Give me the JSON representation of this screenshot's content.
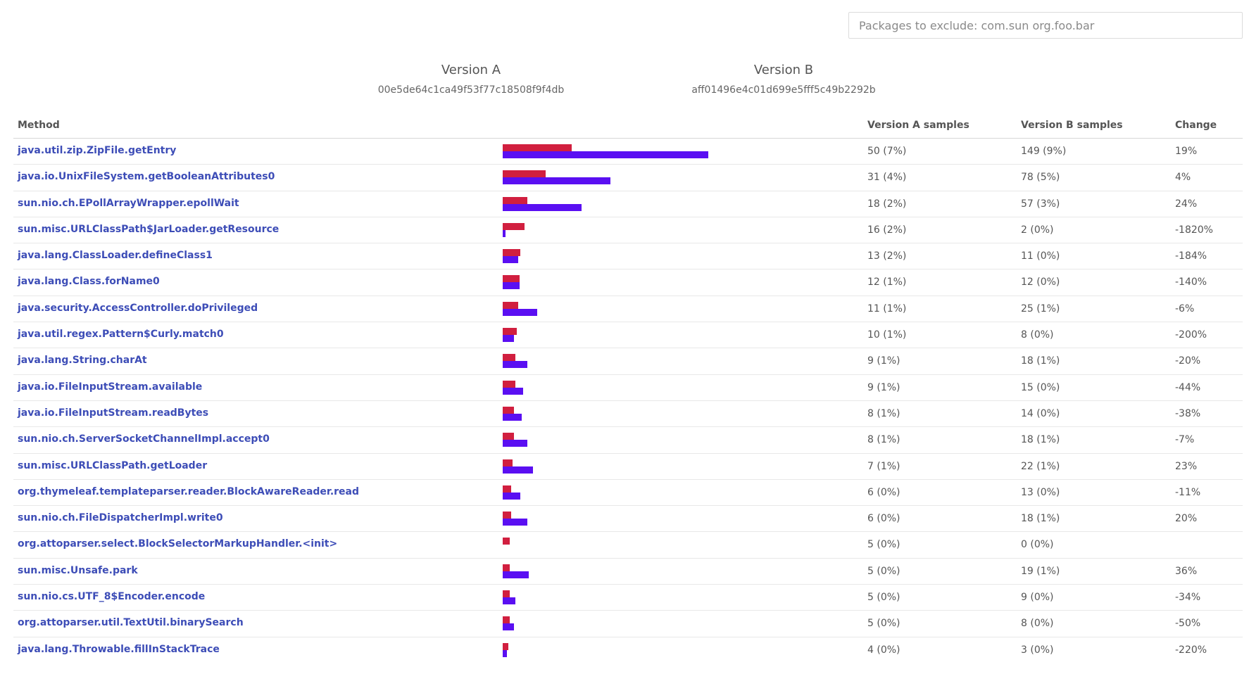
{
  "exclude": {
    "placeholder": "Packages to exclude: com.sun org.foo.bar",
    "value": ""
  },
  "versions": {
    "a": {
      "title": "Version A",
      "hash": "00e5de64c1ca49f53f77c18508f9f4db"
    },
    "b": {
      "title": "Version B",
      "hash": "aff01496e4c01d699e5fff5c49b2292b"
    }
  },
  "table": {
    "headers": {
      "method": "Method",
      "a": "Version A samples",
      "b": "Version B samples",
      "change": "Change"
    },
    "colors": {
      "a": "#d11f3f",
      "b": "#5a0ff2",
      "link": "#3d4db7"
    },
    "bar_max_samples": 149,
    "rows": [
      {
        "method": "java.util.zip.ZipFile.getEntry",
        "a_count": 50,
        "b_count": 149,
        "a": "50 (7%)",
        "b": "149 (9%)",
        "change": "19%"
      },
      {
        "method": "java.io.UnixFileSystem.getBooleanAttributes0",
        "a_count": 31,
        "b_count": 78,
        "a": "31 (4%)",
        "b": "78 (5%)",
        "change": "4%"
      },
      {
        "method": "sun.nio.ch.EPollArrayWrapper.epollWait",
        "a_count": 18,
        "b_count": 57,
        "a": "18 (2%)",
        "b": "57 (3%)",
        "change": "24%"
      },
      {
        "method": "sun.misc.URLClassPath$JarLoader.getResource",
        "a_count": 16,
        "b_count": 2,
        "a": "16 (2%)",
        "b": "2 (0%)",
        "change": "-1820%"
      },
      {
        "method": "java.lang.ClassLoader.defineClass1",
        "a_count": 13,
        "b_count": 11,
        "a": "13 (2%)",
        "b": "11 (0%)",
        "change": "-184%"
      },
      {
        "method": "java.lang.Class.forName0",
        "a_count": 12,
        "b_count": 12,
        "a": "12 (1%)",
        "b": "12 (0%)",
        "change": "-140%"
      },
      {
        "method": "java.security.AccessController.doPrivileged",
        "a_count": 11,
        "b_count": 25,
        "a": "11 (1%)",
        "b": "25 (1%)",
        "change": "-6%"
      },
      {
        "method": "java.util.regex.Pattern$Curly.match0",
        "a_count": 10,
        "b_count": 8,
        "a": "10 (1%)",
        "b": "8 (0%)",
        "change": "-200%"
      },
      {
        "method": "java.lang.String.charAt",
        "a_count": 9,
        "b_count": 18,
        "a": "9 (1%)",
        "b": "18 (1%)",
        "change": "-20%"
      },
      {
        "method": "java.io.FileInputStream.available",
        "a_count": 9,
        "b_count": 15,
        "a": "9 (1%)",
        "b": "15 (0%)",
        "change": "-44%"
      },
      {
        "method": "java.io.FileInputStream.readBytes",
        "a_count": 8,
        "b_count": 14,
        "a": "8 (1%)",
        "b": "14 (0%)",
        "change": "-38%"
      },
      {
        "method": "sun.nio.ch.ServerSocketChannelImpl.accept0",
        "a_count": 8,
        "b_count": 18,
        "a": "8 (1%)",
        "b": "18 (1%)",
        "change": "-7%"
      },
      {
        "method": "sun.misc.URLClassPath.getLoader",
        "a_count": 7,
        "b_count": 22,
        "a": "7 (1%)",
        "b": "22 (1%)",
        "change": "23%"
      },
      {
        "method": "org.thymeleaf.templateparser.reader.BlockAwareReader.read",
        "a_count": 6,
        "b_count": 13,
        "a": "6 (0%)",
        "b": "13 (0%)",
        "change": "-11%"
      },
      {
        "method": "sun.nio.ch.FileDispatcherImpl.write0",
        "a_count": 6,
        "b_count": 18,
        "a": "6 (0%)",
        "b": "18 (1%)",
        "change": "20%"
      },
      {
        "method": "org.attoparser.select.BlockSelectorMarkupHandler.<init>",
        "a_count": 5,
        "b_count": 0,
        "a": "5 (0%)",
        "b": "0 (0%)",
        "change": ""
      },
      {
        "method": "sun.misc.Unsafe.park",
        "a_count": 5,
        "b_count": 19,
        "a": "5 (0%)",
        "b": "19 (1%)",
        "change": "36%"
      },
      {
        "method": "sun.nio.cs.UTF_8$Encoder.encode",
        "a_count": 5,
        "b_count": 9,
        "a": "5 (0%)",
        "b": "9 (0%)",
        "change": "-34%"
      },
      {
        "method": "org.attoparser.util.TextUtil.binarySearch",
        "a_count": 5,
        "b_count": 8,
        "a": "5 (0%)",
        "b": "8 (0%)",
        "change": "-50%"
      },
      {
        "method": "java.lang.Throwable.fillInStackTrace",
        "a_count": 4,
        "b_count": 3,
        "a": "4 (0%)",
        "b": "3 (0%)",
        "change": "-220%"
      }
    ]
  }
}
